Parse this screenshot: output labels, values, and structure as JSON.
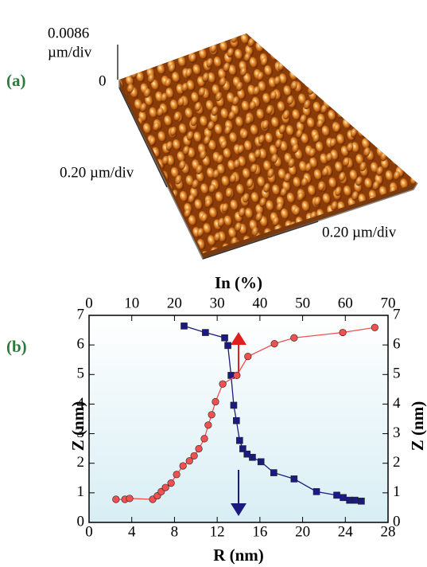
{
  "panel_a": {
    "label": "(a)",
    "z_scale": "0.0086",
    "z_unit": "µm/div",
    "z_zero": "0",
    "y_scale": "0.20 µm/div",
    "x_scale": "0.20 µm/div"
  },
  "panel_b_label": "(b)",
  "chart_data": {
    "type": "line",
    "xlabel": "R (nm)",
    "x2label": "In (%)",
    "ylabel": "Z (nm)",
    "y2label": "Z (nm)",
    "xlim": [
      0,
      28
    ],
    "xticks": [
      0,
      4,
      8,
      12,
      16,
      20,
      24,
      28
    ],
    "x2lim": [
      0,
      70
    ],
    "x2ticks": [
      0,
      10,
      20,
      30,
      40,
      50,
      60,
      70
    ],
    "ylim": [
      0,
      7
    ],
    "yticks": [
      0,
      1,
      2,
      3,
      4,
      5,
      6,
      7
    ],
    "y2lim": [
      0,
      7
    ],
    "y2ticks": [
      0,
      1,
      2,
      3,
      4,
      5,
      6,
      7
    ],
    "series": [
      {
        "color": "#1a1a80",
        "marker": "square",
        "xaxis": "x",
        "x": [
          8.9,
          10.9,
          12.7,
          13.0,
          13.3,
          13.55,
          13.8,
          14.1,
          14.4,
          14.8,
          15.3,
          16.1,
          17.3,
          19.2,
          21.3,
          23.2,
          23.8,
          24.4,
          24.9,
          25.5
        ],
        "values": [
          6.64,
          6.42,
          6.24,
          5.98,
          4.97,
          3.96,
          3.44,
          2.77,
          2.49,
          2.31,
          2.2,
          2.05,
          1.68,
          1.47,
          1.04,
          0.92,
          0.84,
          0.75,
          0.75,
          0.72
        ]
      },
      {
        "color": "#f05050",
        "marker": "circle",
        "xaxis": "x2",
        "x": [
          6.3,
          8.4,
          9.5,
          14.9,
          16.0,
          16.9,
          17.9,
          19.2,
          20.5,
          22.0,
          23.5,
          24.6,
          25.7,
          27.0,
          27.9,
          28.7,
          29.6,
          31.3,
          34.6,
          37.2,
          43.4,
          48.0,
          59.4,
          66.9
        ],
        "values": [
          0.78,
          0.78,
          0.81,
          0.78,
          0.9,
          1.04,
          1.18,
          1.33,
          1.62,
          1.91,
          2.08,
          2.25,
          2.49,
          2.83,
          3.29,
          3.64,
          4.08,
          4.68,
          4.97,
          5.61,
          6.04,
          6.24,
          6.42,
          6.59
        ]
      }
    ]
  }
}
